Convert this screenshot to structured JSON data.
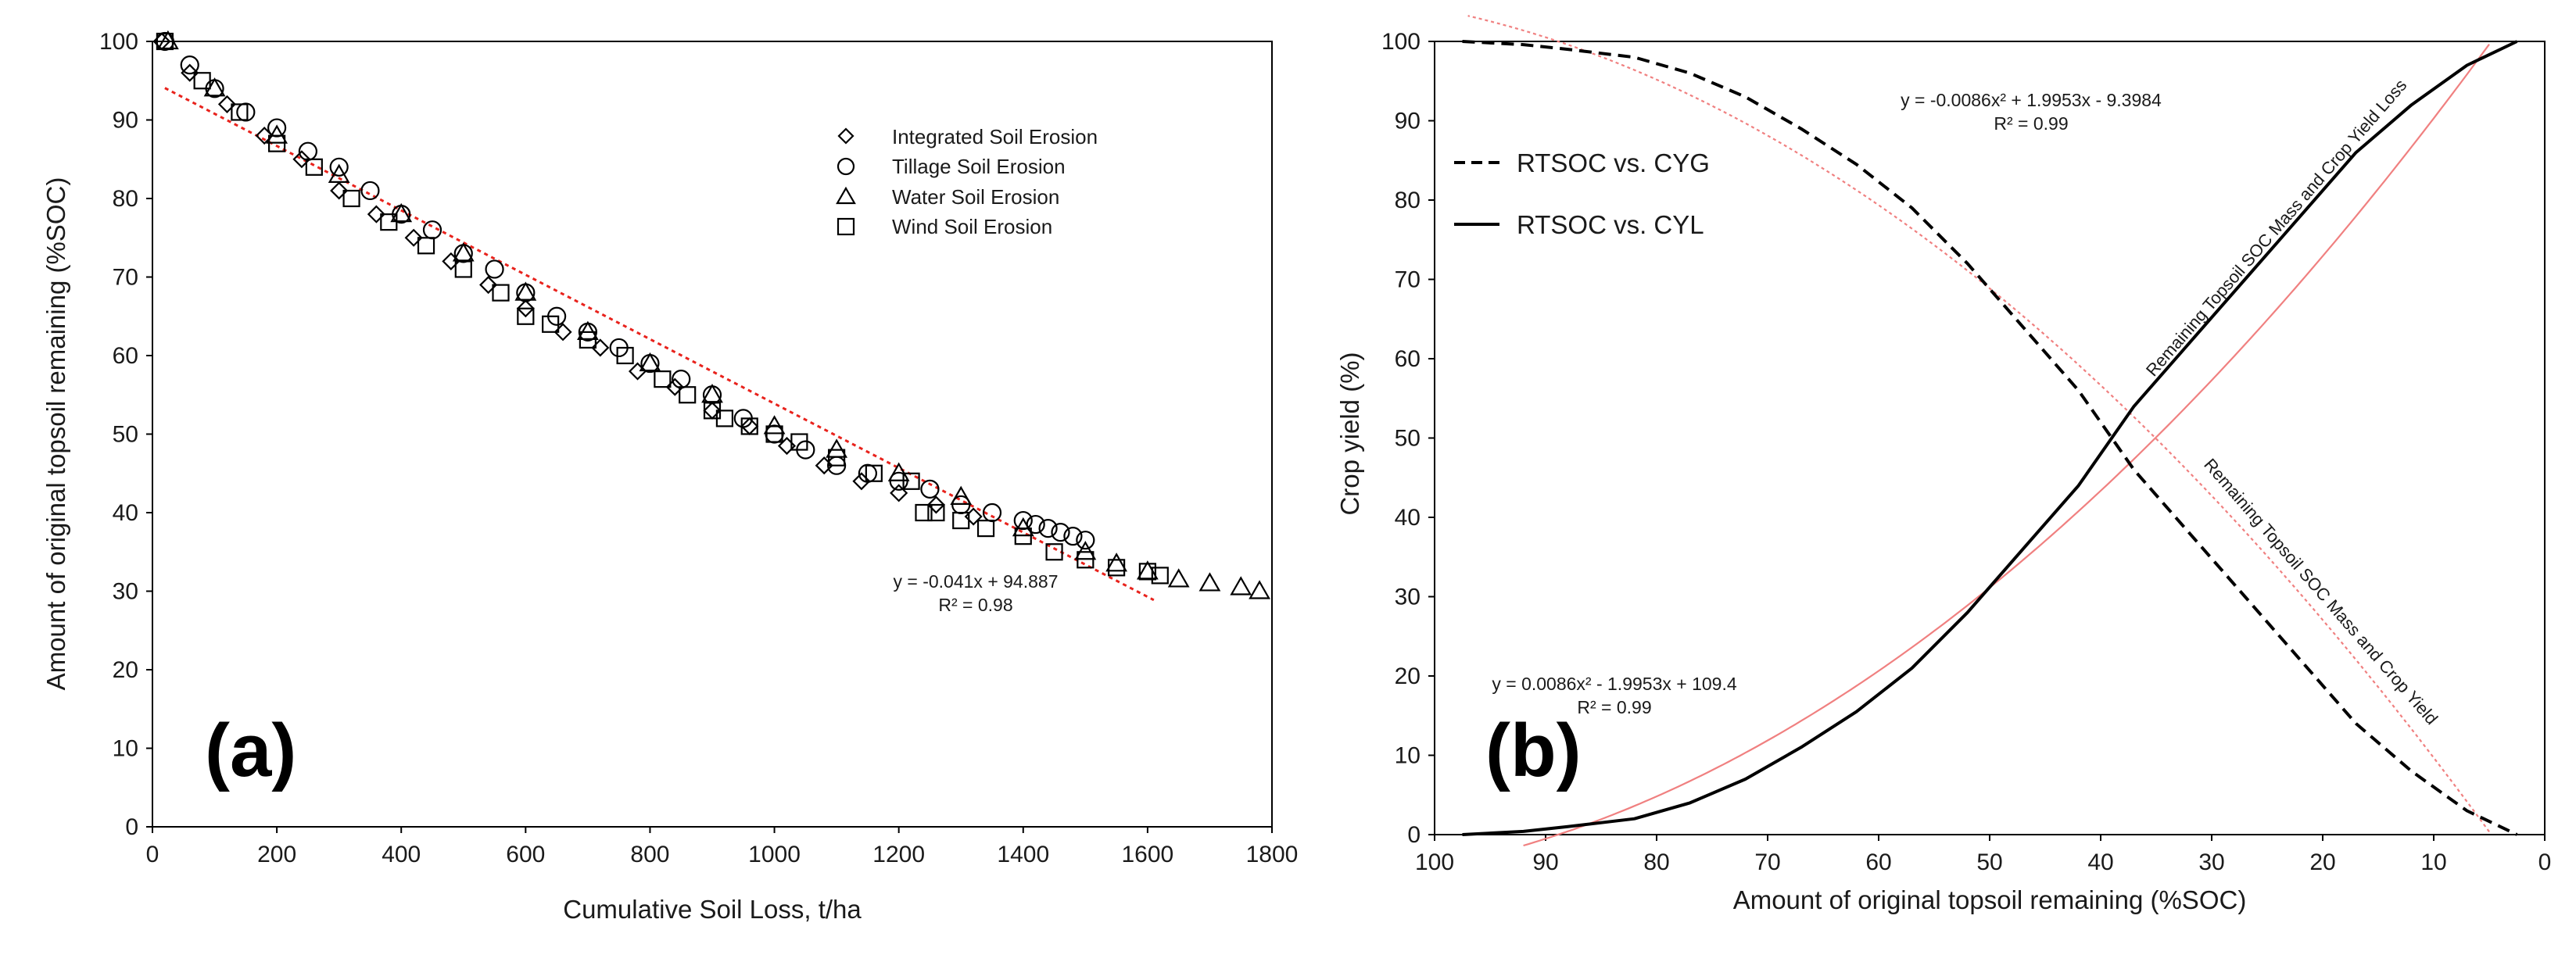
{
  "chart_data": [
    {
      "type": "scatter",
      "panel_label": "(a)",
      "xlabel": "Cumulative Soil Loss, t/ha",
      "ylabel": "Amount of original topsoil remaining (%SOC)",
      "xlim": [
        0,
        1800
      ],
      "ylim": [
        0,
        100
      ],
      "xticks": [
        "0",
        "200",
        "400",
        "600",
        "800",
        "1000",
        "1200",
        "1400",
        "1600",
        "1800"
      ],
      "yticks": [
        "0",
        "10",
        "20",
        "30",
        "40",
        "50",
        "60",
        "70",
        "80",
        "90",
        "100"
      ],
      "legend_position": "top-right",
      "series": [
        {
          "name": "Integrated Soil Erosion",
          "marker": "diamond",
          "x": [
            15,
            60,
            120,
            180,
            240,
            300,
            360,
            420,
            480,
            540,
            600,
            660,
            720,
            780,
            840,
            900,
            960,
            1020,
            1080,
            1140,
            1200,
            1260,
            1320
          ],
          "y": [
            100,
            96,
            92,
            88,
            85,
            81,
            78,
            75,
            72,
            69,
            66,
            63,
            61,
            58,
            56,
            53,
            51,
            48.5,
            46,
            44,
            42.5,
            41,
            39.5
          ]
        },
        {
          "name": "Tillage Soil Erosion",
          "marker": "circle",
          "x": [
            20,
            60,
            100,
            150,
            200,
            250,
            300,
            350,
            400,
            450,
            500,
            550,
            600,
            650,
            700,
            750,
            800,
            850,
            900,
            950,
            1000,
            1050,
            1100,
            1150,
            1200,
            1250,
            1300,
            1350,
            1400,
            1420,
            1440,
            1460,
            1480,
            1500
          ],
          "y": [
            100,
            97,
            94,
            91,
            89,
            86,
            84,
            81,
            78,
            76,
            73,
            71,
            68,
            65,
            63,
            61,
            59,
            57,
            55,
            52,
            50,
            48,
            46,
            45,
            44,
            43,
            41,
            40,
            39,
            38.5,
            38,
            37.5,
            37,
            36.5
          ]
        },
        {
          "name": "Water Soil Erosion",
          "marker": "triangle",
          "x": [
            25,
            100,
            200,
            300,
            400,
            500,
            600,
            700,
            800,
            900,
            1000,
            1100,
            1200,
            1300,
            1400,
            1500,
            1550,
            1600,
            1650,
            1700,
            1750,
            1780
          ],
          "y": [
            100,
            94,
            88,
            83,
            78,
            73,
            68,
            63,
            59,
            55,
            51,
            48,
            45,
            42,
            38,
            35,
            33.5,
            32.5,
            31.5,
            31,
            30.5,
            30
          ]
        },
        {
          "name": "Wind Soil Erosion",
          "marker": "square",
          "x": [
            20,
            80,
            140,
            200,
            260,
            320,
            380,
            440,
            500,
            560,
            600,
            640,
            700,
            760,
            820,
            860,
            900,
            920,
            960,
            1000,
            1040,
            1100,
            1160,
            1220,
            1240,
            1260,
            1300,
            1340,
            1400,
            1450,
            1500,
            1550,
            1600,
            1620
          ],
          "y": [
            100,
            95,
            91,
            87,
            84,
            80,
            77,
            74,
            71,
            68,
            65,
            64,
            62,
            60,
            57,
            55,
            53,
            52,
            51,
            50,
            49,
            47,
            45,
            44,
            40,
            40,
            39,
            38,
            37,
            35,
            34,
            33,
            32.5,
            32
          ]
        }
      ],
      "trendline": {
        "equation": "y = -0.041x + 94.887",
        "r2": "R² = 0.98",
        "slope": -0.041,
        "intercept": 94.887,
        "x_range": [
          20,
          1610
        ],
        "color": "#e8221c"
      }
    },
    {
      "type": "line",
      "panel_label": "(b)",
      "xlabel": "Amount of original topsoil remaining (%SOC)",
      "ylabel": "Crop yield (%)",
      "xlim": [
        100,
        0
      ],
      "ylim": [
        0,
        100
      ],
      "xticks": [
        "100",
        "90",
        "80",
        "70",
        "60",
        "50",
        "40",
        "30",
        "20",
        "10",
        "0"
      ],
      "yticks": [
        "0",
        "10",
        "20",
        "30",
        "40",
        "50",
        "60",
        "70",
        "80",
        "90",
        "100"
      ],
      "legend_position": "top-left",
      "series": [
        {
          "name": "RTSOC vs. CYG",
          "style": "dashed",
          "x": [
            97.5,
            92,
            88,
            82,
            77,
            72,
            67,
            62,
            57,
            52,
            47,
            42,
            37,
            32,
            27,
            22,
            17,
            12,
            7,
            2.5
          ],
          "y": [
            100,
            99.6,
            99,
            98,
            96,
            93,
            89,
            84.5,
            79,
            72,
            64,
            56,
            46,
            38,
            30,
            22,
            14,
            8,
            3,
            0
          ]
        },
        {
          "name": "RTSOC vs. CYL",
          "style": "solid",
          "x": [
            97.5,
            92,
            88,
            82,
            77,
            72,
            67,
            62,
            57,
            52,
            47,
            42,
            37,
            32,
            27,
            22,
            17,
            12,
            7,
            2.5
          ],
          "y": [
            0,
            0.4,
            1,
            2,
            4,
            7,
            11,
            15.5,
            21,
            28,
            36,
            44,
            54,
            62,
            70,
            78,
            86,
            92,
            97,
            100
          ]
        }
      ],
      "trendlines": [
        {
          "equation": "y = -0.0086x² + 1.9953x - 9.3984",
          "r2": "R² = 0.99",
          "a": -0.0086,
          "b": 1.9953,
          "c": -9.3984,
          "x_range": [
            5,
            97
          ],
          "color": "#f08080"
        },
        {
          "equation": "y = 0.0086x² - 1.9953x + 109.4",
          "r2": "R² = 0.99",
          "a": 0.0086,
          "b": -1.9953,
          "c": 109.4,
          "x_range": [
            5,
            92
          ],
          "color": "#f08080"
        }
      ],
      "annotations": [
        "Remaining Topsoil SOC Mass and Crop Yield Loss",
        "Remaining Topsoil SOC Mass and Crop Yield"
      ]
    }
  ]
}
